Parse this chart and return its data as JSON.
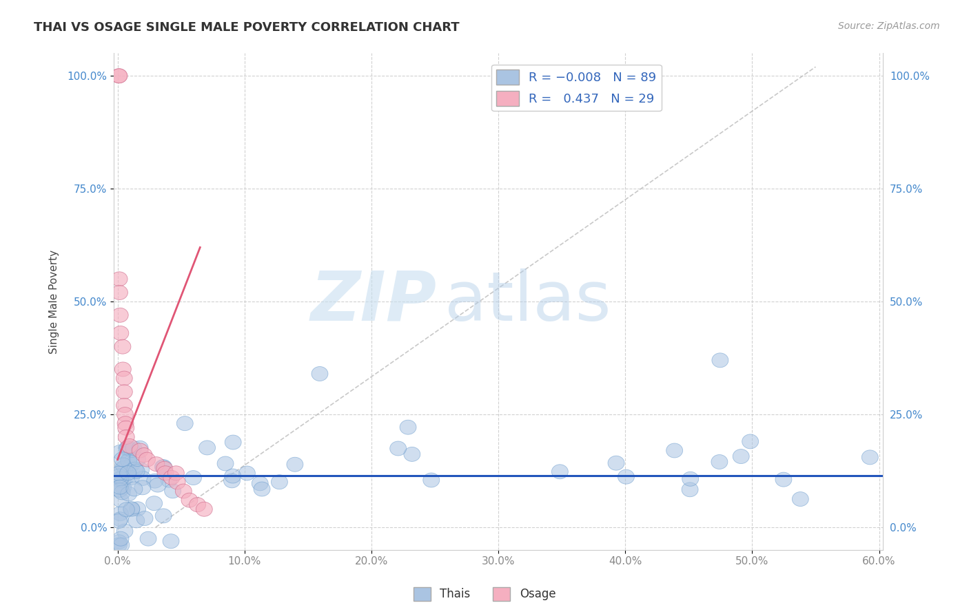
{
  "title": "THAI VS OSAGE SINGLE MALE POVERTY CORRELATION CHART",
  "source_text": "Source: ZipAtlas.com",
  "ylabel": "Single Male Poverty",
  "xlim": [
    -0.003,
    0.603
  ],
  "ylim": [
    -0.05,
    1.05
  ],
  "xticks": [
    0.0,
    0.1,
    0.2,
    0.3,
    0.4,
    0.5,
    0.6
  ],
  "xticklabels": [
    "0.0%",
    "10.0%",
    "20.0%",
    "30.0%",
    "40.0%",
    "50.0%",
    "60.0%"
  ],
  "yticks": [
    0.0,
    0.25,
    0.5,
    0.75,
    1.0
  ],
  "yticklabels": [
    "0.0%",
    "25.0%",
    "50.0%",
    "75.0%",
    "100.0%"
  ],
  "thai_color": "#aac4e2",
  "osage_color": "#f5afc0",
  "thai_line_color": "#2255bb",
  "osage_line_color": "#e05575",
  "R_thai": -0.008,
  "N_thai": 89,
  "R_osage": 0.437,
  "N_osage": 29,
  "watermark_ZIP": "ZIP",
  "watermark_atlas": "atlas",
  "background_color": "#ffffff",
  "grid_color": "#cccccc",
  "title_color": "#333333",
  "source_color": "#999999",
  "ylabel_color": "#444444",
  "tick_color_x": "#888888",
  "tick_color_y": "#4488cc",
  "legend_border_color": "#cccccc",
  "osage_line_x0": 0.0,
  "osage_line_x1": 0.065,
  "osage_line_y0": 0.15,
  "osage_line_y1": 0.62,
  "diag_line_x0": 0.03,
  "diag_line_x1": 0.55,
  "diag_line_y0": 0.0,
  "diag_line_y1": 1.02,
  "thai_line_y": 0.115
}
